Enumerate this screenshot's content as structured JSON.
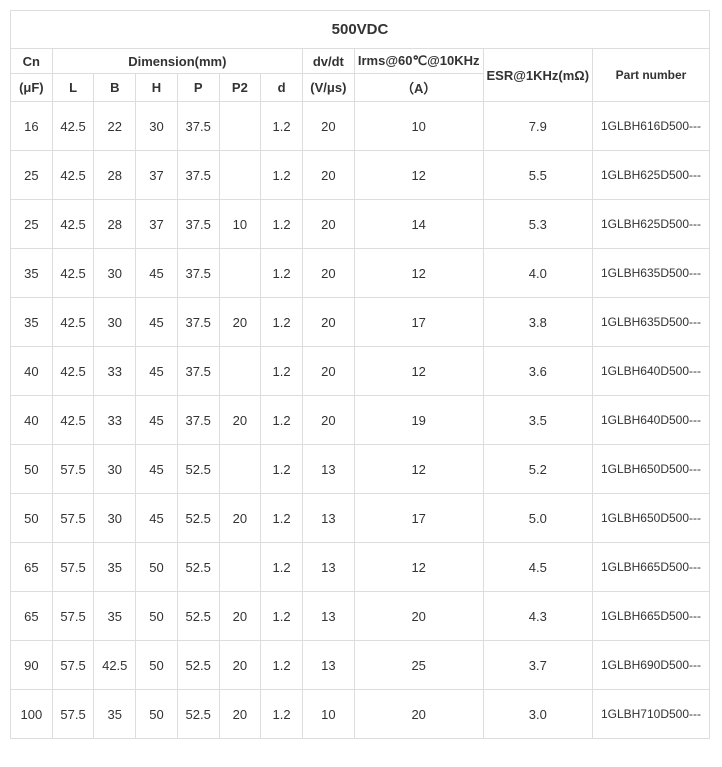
{
  "title": "500VDC",
  "headers": {
    "cn_top": "Cn",
    "cn_bot": "(μF)",
    "dim_top": "Dimension(mm)",
    "L": "L",
    "B": "B",
    "H": "H",
    "P": "P",
    "P2": "P2",
    "d": "d",
    "dvdt_top": "dv/dt",
    "dvdt_bot": "(V/μs)",
    "irms_top": "Irms@60℃@10KHz",
    "irms_bot": "（A）",
    "esr": "ESR@1KHz(mΩ)",
    "part": "Part number"
  },
  "rows": [
    {
      "cn": "16",
      "L": "42.5",
      "B": "22",
      "H": "30",
      "P": "37.5",
      "P2": "",
      "d": "1.2",
      "dvdt": "20",
      "irms": "10",
      "esr": "7.9",
      "part": "1GLBH616D500---"
    },
    {
      "cn": "25",
      "L": "42.5",
      "B": "28",
      "H": "37",
      "P": "37.5",
      "P2": "",
      "d": "1.2",
      "dvdt": "20",
      "irms": "12",
      "esr": "5.5",
      "part": "1GLBH625D500---"
    },
    {
      "cn": "25",
      "L": "42.5",
      "B": "28",
      "H": "37",
      "P": "37.5",
      "P2": "10",
      "d": "1.2",
      "dvdt": "20",
      "irms": "14",
      "esr": "5.3",
      "part": "1GLBH625D500---"
    },
    {
      "cn": "35",
      "L": "42.5",
      "B": "30",
      "H": "45",
      "P": "37.5",
      "P2": "",
      "d": "1.2",
      "dvdt": "20",
      "irms": "12",
      "esr": "4.0",
      "part": "1GLBH635D500---"
    },
    {
      "cn": "35",
      "L": "42.5",
      "B": "30",
      "H": "45",
      "P": "37.5",
      "P2": "20",
      "d": "1.2",
      "dvdt": "20",
      "irms": "17",
      "esr": "3.8",
      "part": "1GLBH635D500---"
    },
    {
      "cn": "40",
      "L": "42.5",
      "B": "33",
      "H": "45",
      "P": "37.5",
      "P2": "",
      "d": "1.2",
      "dvdt": "20",
      "irms": "12",
      "esr": "3.6",
      "part": "1GLBH640D500---"
    },
    {
      "cn": "40",
      "L": "42.5",
      "B": "33",
      "H": "45",
      "P": "37.5",
      "P2": "20",
      "d": "1.2",
      "dvdt": "20",
      "irms": "19",
      "esr": "3.5",
      "part": "1GLBH640D500---"
    },
    {
      "cn": "50",
      "L": "57.5",
      "B": "30",
      "H": "45",
      "P": "52.5",
      "P2": "",
      "d": "1.2",
      "dvdt": "13",
      "irms": "12",
      "esr": "5.2",
      "part": "1GLBH650D500---"
    },
    {
      "cn": "50",
      "L": "57.5",
      "B": "30",
      "H": "45",
      "P": "52.5",
      "P2": "20",
      "d": "1.2",
      "dvdt": "13",
      "irms": "17",
      "esr": "5.0",
      "part": "1GLBH650D500---"
    },
    {
      "cn": "65",
      "L": "57.5",
      "B": "35",
      "H": "50",
      "P": "52.5",
      "P2": "",
      "d": "1.2",
      "dvdt": "13",
      "irms": "12",
      "esr": "4.5",
      "part": "1GLBH665D500---"
    },
    {
      "cn": "65",
      "L": "57.5",
      "B": "35",
      "H": "50",
      "P": "52.5",
      "P2": "20",
      "d": "1.2",
      "dvdt": "13",
      "irms": "20",
      "esr": "4.3",
      "part": "1GLBH665D500---"
    },
    {
      "cn": "90",
      "L": "57.5",
      "B": "42.5",
      "H": "50",
      "P": "52.5",
      "P2": "20",
      "d": "1.2",
      "dvdt": "13",
      "irms": "25",
      "esr": "3.7",
      "part": "1GLBH690D500---"
    },
    {
      "cn": "100",
      "L": "57.5",
      "B": "35",
      "H": "50",
      "P": "52.5",
      "P2": "20",
      "d": "1.2",
      "dvdt": "10",
      "irms": "20",
      "esr": "3.0",
      "part": "1GLBH710D500---"
    }
  ]
}
